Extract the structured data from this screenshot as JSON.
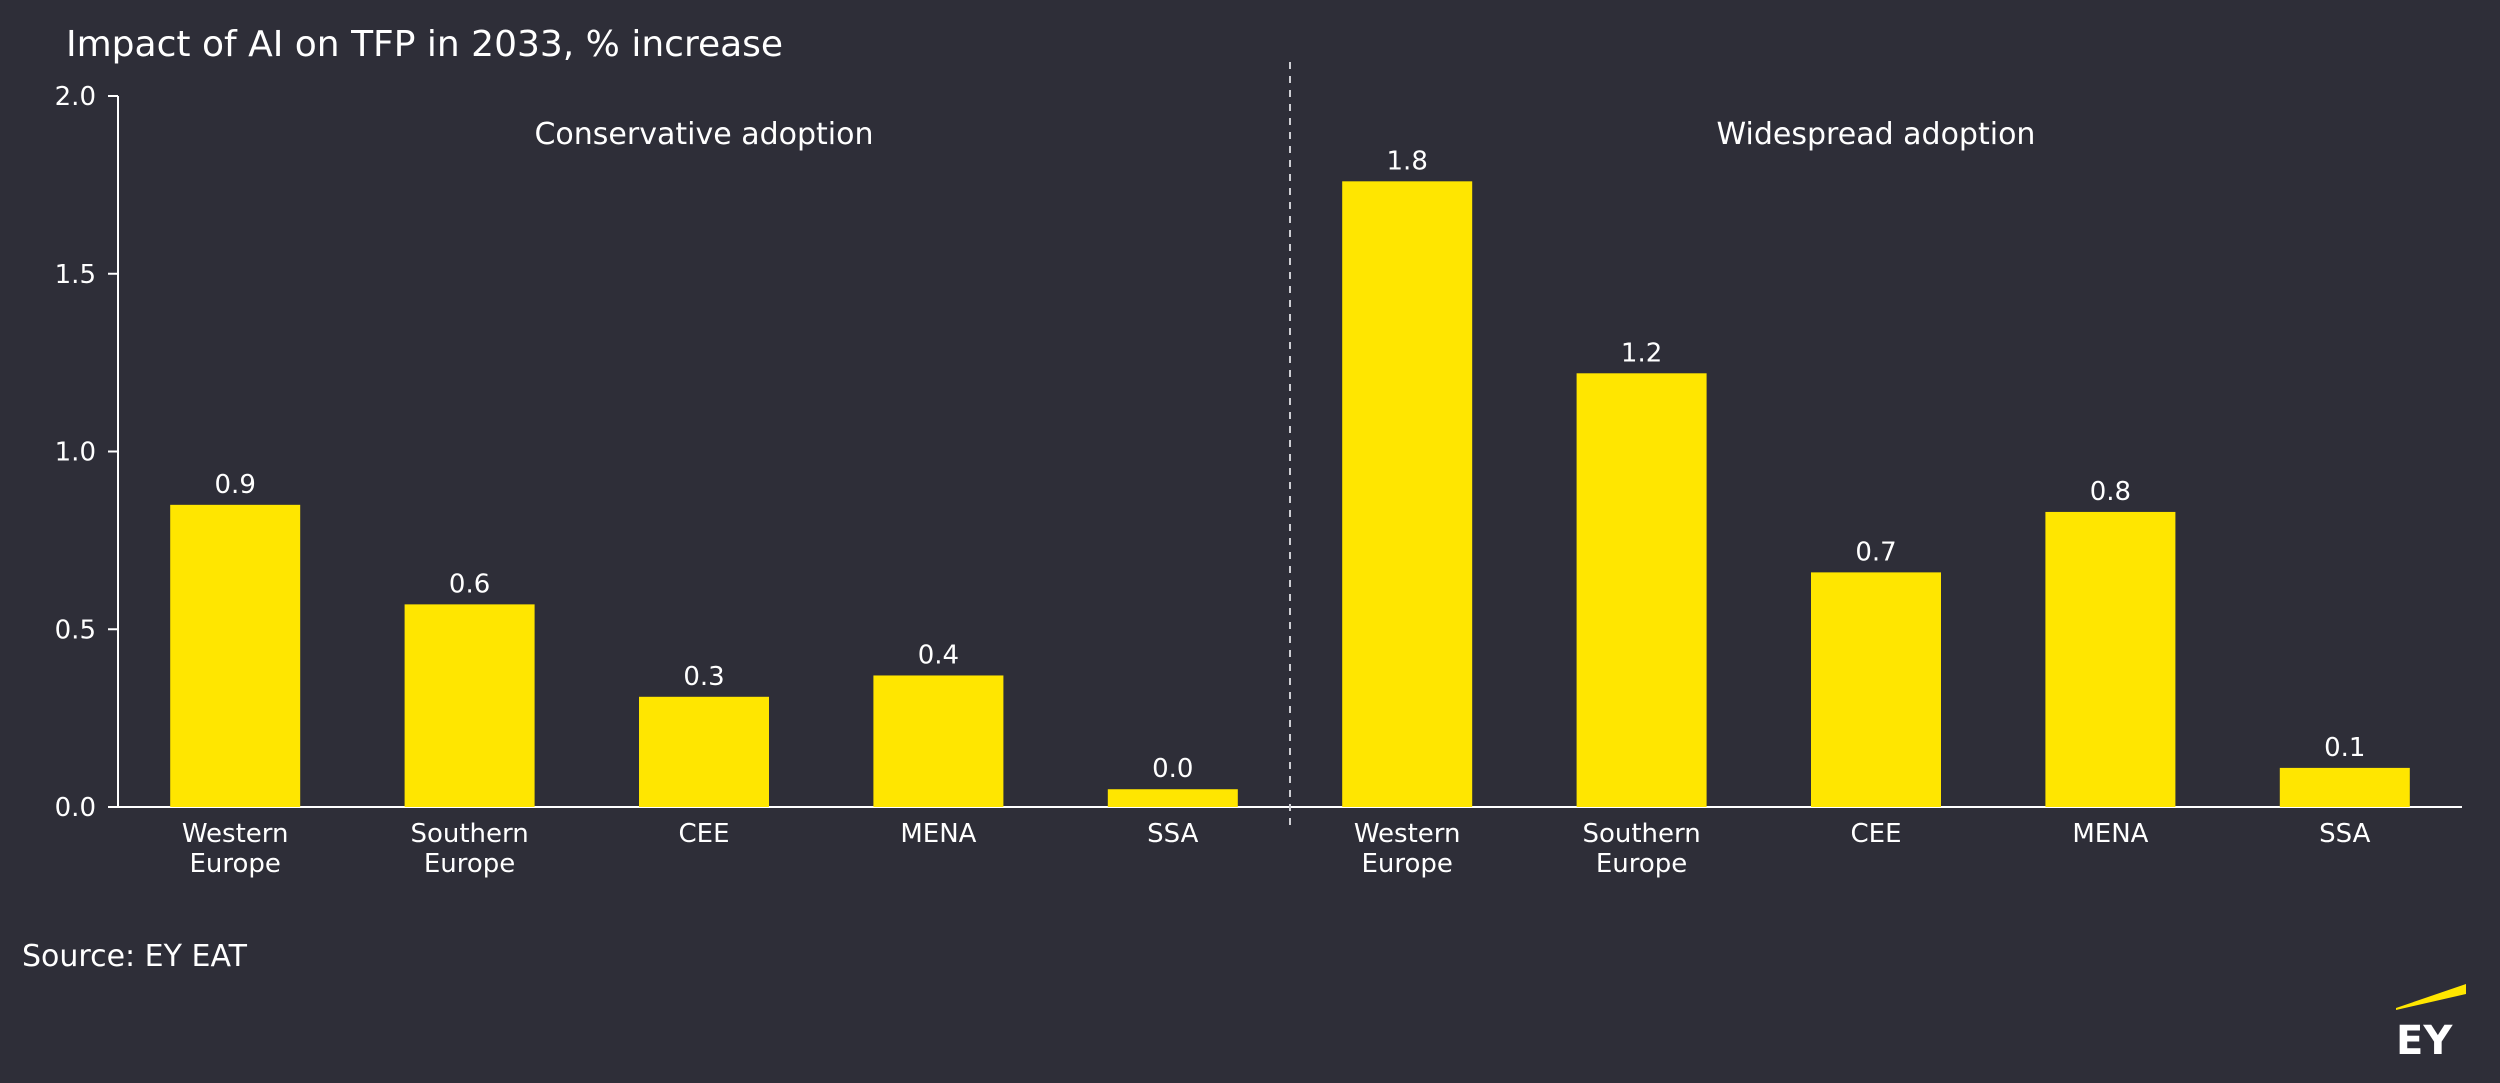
{
  "chart_data": {
    "type": "bar",
    "title": "Impact of AI on TFP in 2033, % increase",
    "ylim": [
      0,
      2.0
    ],
    "yticks": [
      "2.0",
      "1.5",
      "1.0",
      "0.5",
      "0.0"
    ],
    "ytick_values": [
      2.0,
      1.5,
      1.0,
      0.5,
      0.0
    ],
    "panels": [
      {
        "name": "Conservative adoption",
        "categories": [
          [
            "Western",
            "Europe"
          ],
          [
            "Southern",
            "Europe"
          ],
          [
            "CEE"
          ],
          [
            "MENA"
          ],
          [
            "SSA"
          ]
        ],
        "values": [
          0.85,
          0.57,
          0.31,
          0.37,
          0.05
        ],
        "labels": [
          "0.9",
          "0.6",
          "0.3",
          "0.4",
          "0.0"
        ]
      },
      {
        "name": "Widespread adoption",
        "categories": [
          [
            "Western",
            "Europe"
          ],
          [
            "Southern",
            "Europe"
          ],
          [
            "CEE"
          ],
          [
            "MENA"
          ],
          [
            "SSA"
          ]
        ],
        "values": [
          1.76,
          1.22,
          0.66,
          0.83,
          0.11
        ],
        "labels": [
          "1.8",
          "1.2",
          "0.7",
          "0.8",
          "0.1"
        ]
      }
    ],
    "xlabel": "",
    "ylabel": "",
    "grid": false,
    "source": "Source: EY EAT"
  },
  "logo": {
    "text": "EY"
  },
  "colors": {
    "background": "#2e2e38",
    "bar": "#ffe600",
    "axis": "#ffffff",
    "text": "#ffffff",
    "divider": "#cfcfd4"
  }
}
